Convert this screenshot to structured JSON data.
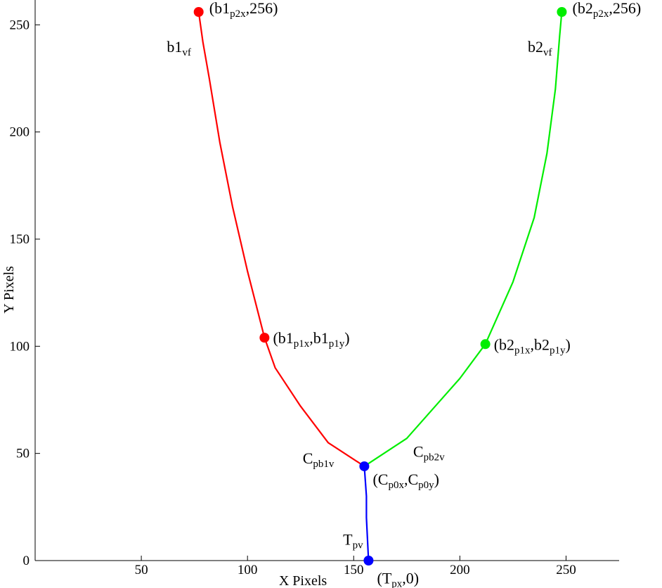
{
  "chart_data": {
    "type": "line",
    "title": "",
    "xlabel": "X Pixels",
    "ylabel": "Y Pixels",
    "xlim": [
      0,
      275
    ],
    "ylim": [
      0,
      256
    ],
    "xticks": [
      50,
      100,
      150,
      200,
      250
    ],
    "yticks": [
      0,
      50,
      100,
      150,
      200,
      250
    ],
    "grid": false,
    "series": [
      {
        "color": "#ff0000",
        "points": [
          [
            155,
            44
          ],
          [
            138,
            55
          ],
          [
            125,
            72
          ],
          [
            113,
            90
          ],
          [
            108,
            104
          ],
          [
            100,
            135
          ],
          [
            93,
            165
          ],
          [
            87,
            195
          ],
          [
            82,
            225
          ],
          [
            79,
            242
          ],
          [
            77,
            256
          ]
        ]
      },
      {
        "color": "#00ee00",
        "points": [
          [
            155,
            44
          ],
          [
            175,
            57
          ],
          [
            200,
            85
          ],
          [
            212,
            101
          ],
          [
            225,
            130
          ],
          [
            235,
            160
          ],
          [
            241,
            190
          ],
          [
            245,
            220
          ],
          [
            247,
            245
          ],
          [
            248,
            256
          ]
        ]
      },
      {
        "color": "#0000ff",
        "points": [
          [
            157,
            0
          ],
          [
            156,
            20
          ],
          [
            156,
            30
          ],
          [
            155,
            44
          ]
        ]
      }
    ],
    "markers": [
      {
        "x": 77,
        "y": 256,
        "color": "#ff0000"
      },
      {
        "x": 108,
        "y": 104,
        "color": "#ff0000"
      },
      {
        "x": 248,
        "y": 256,
        "color": "#00ee00"
      },
      {
        "x": 212,
        "y": 101,
        "color": "#00ee00"
      },
      {
        "x": 155,
        "y": 44,
        "color": "#0000ff"
      },
      {
        "x": 157,
        "y": 0,
        "color": "#0000ff"
      }
    ],
    "annotations": [
      {
        "parts": [
          {
            "t": "(b1"
          },
          {
            "t": "p2x",
            "sub": true
          },
          {
            "t": ",256)"
          }
        ],
        "x": 82,
        "y": 258
      },
      {
        "parts": [
          {
            "t": "b1"
          },
          {
            "t": "vf",
            "sub": true
          }
        ],
        "x": 62,
        "y": 240
      },
      {
        "parts": [
          {
            "t": "(b1"
          },
          {
            "t": "p1x",
            "sub": true
          },
          {
            "t": ",b1"
          },
          {
            "t": "p1y",
            "sub": true
          },
          {
            "t": ")"
          }
        ],
        "x": 112,
        "y": 104
      },
      {
        "parts": [
          {
            "t": "(b2"
          },
          {
            "t": "p2x",
            "sub": true
          },
          {
            "t": ",256)"
          }
        ],
        "x": 253,
        "y": 258
      },
      {
        "parts": [
          {
            "t": "b2"
          },
          {
            "t": "vf",
            "sub": true
          }
        ],
        "x": 232,
        "y": 240
      },
      {
        "parts": [
          {
            "t": "(b2"
          },
          {
            "t": "p1x",
            "sub": true
          },
          {
            "t": ",b2"
          },
          {
            "t": "p1y",
            "sub": true
          },
          {
            "t": ")"
          }
        ],
        "x": 216,
        "y": 101
      },
      {
        "parts": [
          {
            "t": "C"
          },
          {
            "t": "pb1v",
            "sub": true
          }
        ],
        "x": 126,
        "y": 48
      },
      {
        "parts": [
          {
            "t": "C"
          },
          {
            "t": "pb2v",
            "sub": true
          }
        ],
        "x": 178,
        "y": 51
      },
      {
        "parts": [
          {
            "t": "(C"
          },
          {
            "t": "p0x",
            "sub": true
          },
          {
            "t": ",C"
          },
          {
            "t": "p0y",
            "sub": true
          },
          {
            "t": ")"
          }
        ],
        "x": 159,
        "y": 38
      },
      {
        "parts": [
          {
            "t": "T"
          },
          {
            "t": "pv",
            "sub": true
          }
        ],
        "x": 145,
        "y": 10
      },
      {
        "parts": [
          {
            "t": "(T"
          },
          {
            "t": "px",
            "sub": true
          },
          {
            "t": ",0)"
          }
        ],
        "x": 161,
        "y": -8
      }
    ]
  }
}
